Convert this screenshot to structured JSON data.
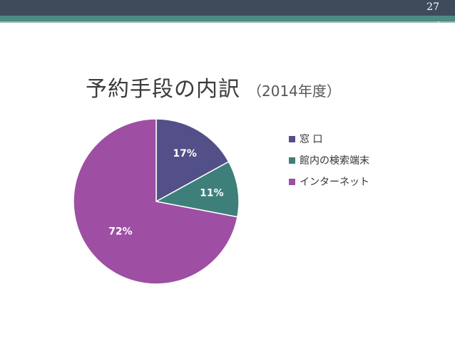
{
  "slide": {
    "page_number": "27",
    "title_main": "予約手段の内訳",
    "title_sub": "（2014年度）"
  },
  "chart_data": {
    "type": "pie",
    "series": [
      {
        "name": "窓 口",
        "value": 17,
        "label": "17%",
        "color": "#534f89"
      },
      {
        "name": "館内の検索端末",
        "value": 11,
        "label": "11%",
        "color": "#3e7f7a"
      },
      {
        "name": "インターネット",
        "value": 72,
        "label": "72%",
        "color": "#9e4ea3"
      }
    ],
    "legend_position": "right"
  }
}
